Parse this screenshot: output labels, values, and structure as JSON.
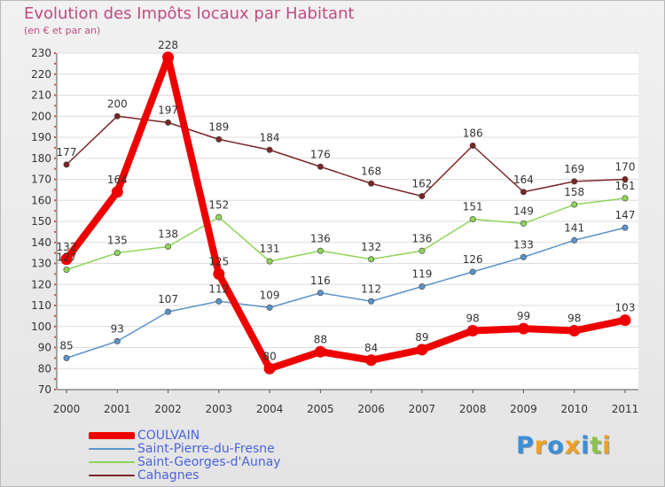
{
  "chart_data": {
    "type": "line",
    "title": "Evolution des Impôts locaux par Habitant",
    "subtitle": "(en € et par an)",
    "x": [
      "2000",
      "2001",
      "2002",
      "2003",
      "2004",
      "2005",
      "2006",
      "2007",
      "2008",
      "2009",
      "2010",
      "2011"
    ],
    "ylim": [
      70,
      230
    ],
    "yticks": [
      70,
      80,
      90,
      100,
      110,
      120,
      130,
      140,
      150,
      160,
      170,
      180,
      190,
      200,
      210,
      220,
      230
    ],
    "grid": "horizontal",
    "legend_position": "bottom-left",
    "series": [
      {
        "name": "COULVAIN",
        "color": "#ee0000",
        "values": [
          132,
          164,
          228,
          125,
          80,
          88,
          84,
          89,
          98,
          99,
          98,
          103
        ],
        "labels": [
          "132",
          "164",
          "228",
          "125",
          "80",
          "88",
          "84",
          "89",
          "98",
          "99",
          "98",
          "103"
        ]
      },
      {
        "name": "Saint-Pierre-du-Fresne",
        "color": "#5b93c9",
        "values": [
          85,
          93,
          107,
          112,
          109,
          116,
          112,
          119,
          126,
          133,
          141,
          147
        ],
        "labels": [
          "85",
          "93",
          "107",
          "112",
          "109",
          "116",
          "112",
          "119",
          "126",
          "133",
          "141",
          "147"
        ]
      },
      {
        "name": "Saint-Georges-d'Aunay",
        "color": "#8ed45a",
        "values": [
          127,
          135,
          138,
          152,
          131,
          136,
          132,
          136,
          151,
          149,
          158,
          161
        ],
        "labels": [
          "127",
          "135",
          "138",
          "152",
          "131",
          "136",
          "132",
          "136",
          "151",
          "149",
          "158",
          "161"
        ]
      },
      {
        "name": "Cahagnes",
        "color": "#7a2626",
        "values": [
          177,
          200,
          197,
          189,
          184,
          176,
          168,
          162,
          186,
          164,
          169,
          170
        ],
        "labels": [
          "177",
          "200",
          "197",
          "189",
          "184",
          "176",
          "168",
          "162",
          "186",
          "164",
          "169",
          "170"
        ]
      }
    ]
  },
  "logo": {
    "letters": [
      "P",
      "r",
      "o",
      "x",
      "i",
      "t",
      "i"
    ],
    "colors": [
      "#3a8fd8",
      "#f0a020",
      "#3a8fd8",
      "#f0a020",
      "#3a8fd8",
      "#8bc34a",
      "#f0a020"
    ]
  }
}
